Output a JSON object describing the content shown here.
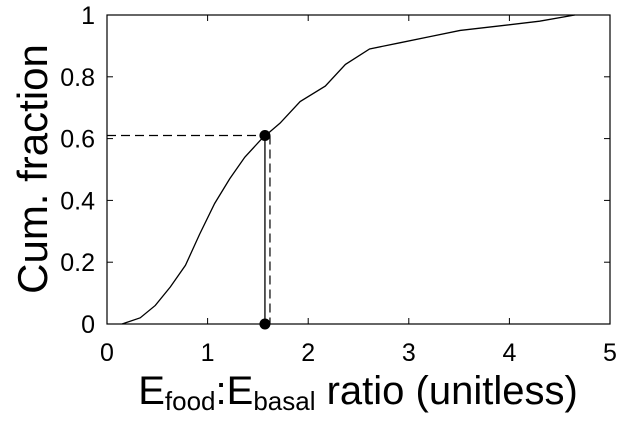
{
  "chart_data": {
    "type": "line",
    "y_label": "Cum. fraction",
    "x_label": [
      {
        "text": "E"
      },
      {
        "text": "food",
        "sub": true
      },
      {
        "text": ":E"
      },
      {
        "text": "basal",
        "sub": true
      },
      {
        "text": " ratio (unitless)"
      }
    ],
    "x": [
      0.15,
      0.33,
      0.48,
      0.63,
      0.78,
      0.92,
      1.07,
      1.22,
      1.37,
      1.54,
      1.72,
      1.92,
      2.17,
      2.37,
      2.61,
      2.91,
      3.21,
      3.51,
      3.91,
      4.3,
      4.65
    ],
    "values": [
      0,
      0.02,
      0.06,
      0.12,
      0.19,
      0.29,
      0.39,
      0.47,
      0.54,
      0.6,
      0.65,
      0.72,
      0.77,
      0.84,
      0.89,
      0.91,
      0.93,
      0.95,
      0.965,
      0.98,
      1
    ],
    "color": "#000000",
    "markers": {
      "x": [
        1.57,
        1.57
      ],
      "y": [
        0.61,
        0
      ]
    },
    "reference": {
      "x": 1.62,
      "y": 0.61
    },
    "xlim": [
      0,
      5
    ],
    "ylim": [
      0,
      1
    ],
    "xticks": [
      0,
      1,
      2,
      3,
      4,
      5
    ],
    "yticks": [
      0,
      0.2,
      0.4,
      0.6,
      0.8,
      1
    ],
    "grid": false
  }
}
